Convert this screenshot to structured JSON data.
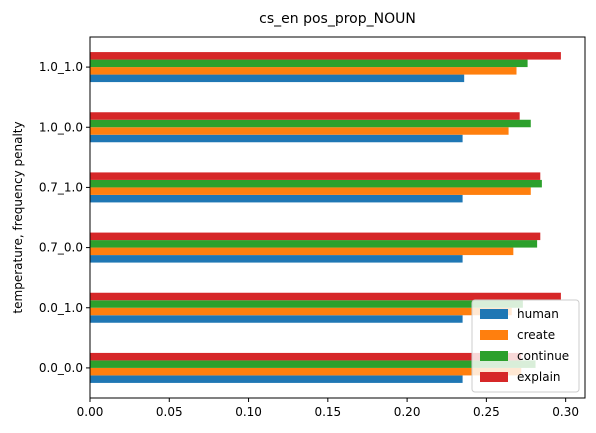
{
  "chart_data": {
    "type": "bar",
    "orientation": "horizontal",
    "title": "cs_en pos_prop_NOUN",
    "xlabel": "",
    "ylabel": "temperature, frequency penalty",
    "categories": [
      "0.0_0.0",
      "0.0_1.0",
      "0.7_0.0",
      "0.7_1.0",
      "1.0_0.0",
      "1.0_1.0"
    ],
    "series": [
      {
        "name": "human",
        "color": "#1f77b4",
        "values": [
          0.235,
          0.235,
          0.235,
          0.235,
          0.235,
          0.236
        ]
      },
      {
        "name": "create",
        "color": "#ff7f0e",
        "values": [
          0.272,
          0.266,
          0.267,
          0.278,
          0.264,
          0.269
        ]
      },
      {
        "name": "continue",
        "color": "#2ca02c",
        "values": [
          0.281,
          0.273,
          0.282,
          0.285,
          0.278,
          0.276
        ]
      },
      {
        "name": "explain",
        "color": "#d62728",
        "values": [
          0.272,
          0.297,
          0.284,
          0.284,
          0.271,
          0.297
        ]
      }
    ],
    "xlim": [
      0,
      0.3122
    ],
    "xticks": [
      "0.00",
      "0.05",
      "0.10",
      "0.15",
      "0.20",
      "0.25",
      "0.30"
    ],
    "grid": false,
    "legend_position": "lower-right"
  }
}
